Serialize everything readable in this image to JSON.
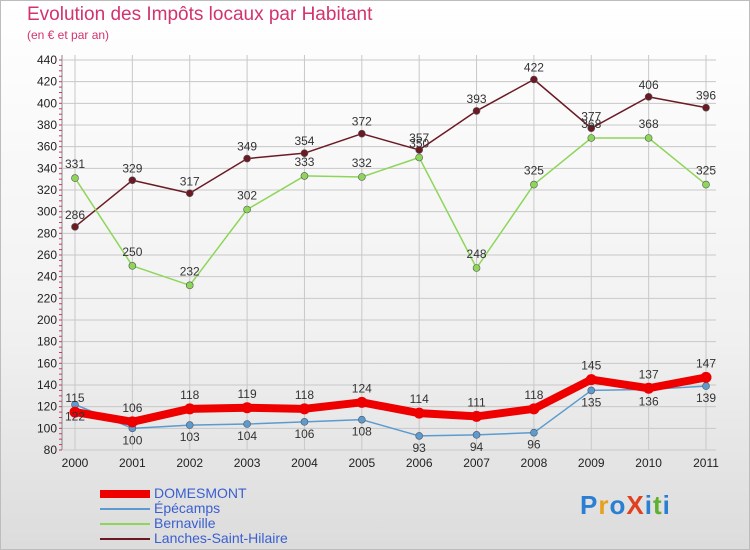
{
  "title": "Evolution des Impôts locaux par Habitant",
  "subtitle": "(en € et par an)",
  "logo": {
    "text": "ProXiti",
    "colors": [
      "#2a7fd4",
      "#e8a020",
      "#2a7fd4",
      "#e04020",
      "#2a7fd4",
      "#60b030",
      "#2a7fd4"
    ]
  },
  "chart_data": {
    "type": "line",
    "x": [
      "2000",
      "2001",
      "2002",
      "2003",
      "2004",
      "2005",
      "2006",
      "2007",
      "2008",
      "2009",
      "2010",
      "2011"
    ],
    "ylim": [
      80,
      440
    ],
    "yticks": [
      "80",
      "100",
      "120",
      "140",
      "160",
      "180",
      "200",
      "220",
      "240",
      "260",
      "280",
      "300",
      "320",
      "340",
      "360",
      "380",
      "400",
      "420",
      "440"
    ],
    "grid": true,
    "legend_position": "bottom-left",
    "series": [
      {
        "name": "Lanches-Saint-Hilaire",
        "color": "#6b1a24",
        "values": [
          286,
          329,
          317,
          349,
          354,
          372,
          357,
          393,
          422,
          377,
          406,
          396
        ]
      },
      {
        "name": "Bernaville",
        "color": "#8ed65a",
        "values": [
          331,
          250,
          232,
          302,
          333,
          332,
          350,
          248,
          325,
          368,
          368,
          325
        ]
      },
      {
        "name": "Épécamps",
        "color": "#5b9bd0",
        "values": [
          122,
          100,
          103,
          104,
          106,
          108,
          93,
          94,
          96,
          135,
          136,
          139
        ]
      },
      {
        "name": "DOMESMONT",
        "color": "#ee0000",
        "values": [
          115,
          106,
          118,
          119,
          118,
          124,
          114,
          111,
          118,
          145,
          137,
          147
        ]
      }
    ]
  },
  "legend": [
    {
      "name": "DOMESMONT",
      "color": "#ee0000"
    },
    {
      "name": "Épécamps",
      "color": "#5b9bd0"
    },
    {
      "name": "Bernaville",
      "color": "#8ed65a"
    },
    {
      "name": "Lanches-Saint-Hilaire",
      "color": "#6b1a24"
    }
  ]
}
